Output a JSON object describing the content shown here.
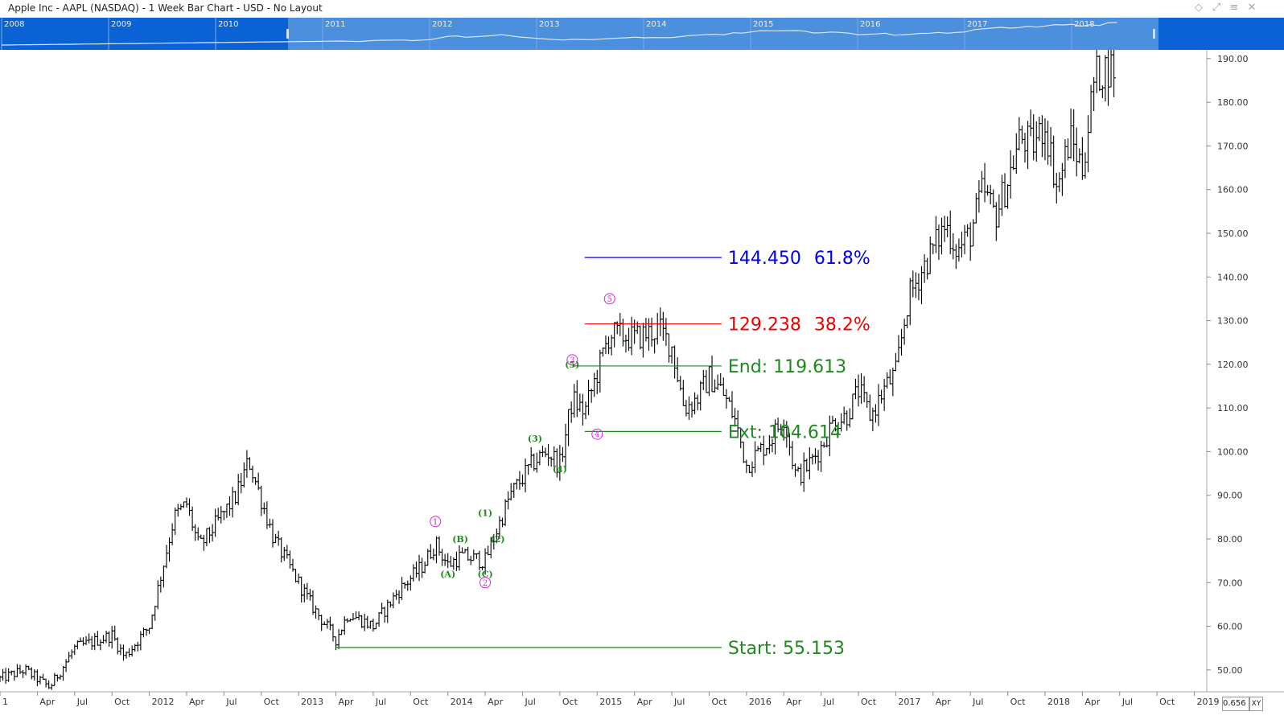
{
  "title": "Apple Inc - AAPL (NASDAQ) - 1 Week Bar Chart - USD - No Layout",
  "toolbar_icons": [
    "diamond-icon",
    "pin-icon",
    "collapse-icon",
    "close-icon"
  ],
  "navigator": {
    "years": [
      "2008",
      "2009",
      "2010",
      "2011",
      "2012",
      "2013",
      "2014",
      "2015",
      "2016",
      "2017",
      "2018"
    ]
  },
  "status": {
    "x_readout": "0.656",
    "xy_label": "XY"
  },
  "colors": {
    "bars": "#000000",
    "wave_green": "#1e8a1e",
    "wave_magenta": "#e020e0",
    "fib_blue": "#0000ee",
    "fib_red": "#ee0000",
    "navigator": "#0a62d4"
  },
  "chart_data": {
    "type": "bar",
    "symbol": "AAPL",
    "interval": "1 Week",
    "y_range": [
      45,
      192
    ],
    "y_ticks": [
      "190.00",
      "180.00",
      "170.00",
      "160.00",
      "150.00",
      "140.00",
      "130.00",
      "120.00",
      "110.00",
      "100.00",
      "90.00",
      "80.00",
      "70.00",
      "60.00",
      "50.00"
    ],
    "x_ticks": [
      "1",
      "Apr",
      "Jul",
      "Oct",
      "2012",
      "Apr",
      "Jul",
      "Oct",
      "2013",
      "Apr",
      "Jul",
      "Oct",
      "2014",
      "Apr",
      "Jul",
      "Oct",
      "2015",
      "Apr",
      "Jul",
      "Oct",
      "2016",
      "Apr",
      "Jul",
      "Oct",
      "2017",
      "Apr",
      "Jul",
      "Oct",
      "2018",
      "Apr",
      "Jul",
      "Oct",
      "2019"
    ],
    "x_start": "2011-01",
    "x_end": "2019-02",
    "price_path": [
      [
        "2011-01",
        48
      ],
      [
        "2011-03",
        50
      ],
      [
        "2011-05",
        46
      ],
      [
        "2011-07",
        55
      ],
      [
        "2011-10",
        58
      ],
      [
        "2011-11",
        53
      ],
      [
        "2012-01",
        60
      ],
      [
        "2012-03",
        85
      ],
      [
        "2012-04",
        88
      ],
      [
        "2012-05",
        78
      ],
      [
        "2012-06",
        82
      ],
      [
        "2012-08",
        90
      ],
      [
        "2012-09",
        98
      ],
      [
        "2012-11",
        80
      ],
      [
        "2013-01",
        70
      ],
      [
        "2013-02",
        65
      ],
      [
        "2013-04",
        57
      ],
      [
        "2013-05",
        63
      ],
      [
        "2013-07",
        60
      ],
      [
        "2013-09",
        68
      ],
      [
        "2013-11",
        74
      ],
      [
        "2013-12",
        79
      ],
      [
        "2014-01",
        74
      ],
      [
        "2014-02",
        76
      ],
      [
        "2014-04",
        75
      ],
      [
        "2014-06",
        90
      ],
      [
        "2014-08",
        98
      ],
      [
        "2014-09",
        100
      ],
      [
        "2014-10",
        97
      ],
      [
        "2014-11",
        112
      ],
      [
        "2014-12",
        109
      ],
      [
        "2015-02",
        127
      ],
      [
        "2015-04",
        126
      ],
      [
        "2015-06",
        128
      ],
      [
        "2015-07",
        124
      ],
      [
        "2015-08",
        110
      ],
      [
        "2015-09",
        112
      ],
      [
        "2015-10",
        117
      ],
      [
        "2015-11",
        114
      ],
      [
        "2015-12",
        108
      ],
      [
        "2016-01",
        97
      ],
      [
        "2016-03",
        103
      ],
      [
        "2016-04",
        108
      ],
      [
        "2016-05",
        94
      ],
      [
        "2016-06",
        97
      ],
      [
        "2016-07",
        101
      ],
      [
        "2016-08",
        107
      ],
      [
        "2016-09",
        108
      ],
      [
        "2016-10",
        114
      ],
      [
        "2016-11",
        108
      ],
      [
        "2016-12",
        114
      ],
      [
        "2017-01",
        118
      ],
      [
        "2017-02",
        135
      ],
      [
        "2017-03",
        141
      ],
      [
        "2017-05",
        152
      ],
      [
        "2017-06",
        146
      ],
      [
        "2017-07",
        150
      ],
      [
        "2017-08",
        160
      ],
      [
        "2017-09",
        154
      ],
      [
        "2017-10",
        162
      ],
      [
        "2017-11",
        172
      ],
      [
        "2017-12",
        170
      ],
      [
        "2018-01",
        175
      ],
      [
        "2018-02",
        160
      ],
      [
        "2018-03",
        172
      ],
      [
        "2018-04",
        165
      ],
      [
        "2018-05",
        186
      ],
      [
        "2018-06",
        188
      ]
    ],
    "elliott_waves": [
      {
        "label": "1",
        "color": "magenta",
        "date": "2013-12",
        "price": 84
      },
      {
        "label": "2",
        "color": "magenta",
        "date": "2014-04",
        "price": 70
      },
      {
        "label": "3",
        "color": "magenta",
        "date": "2014-11",
        "price": 121
      },
      {
        "label": "4",
        "color": "magenta",
        "date": "2015-01",
        "price": 104
      },
      {
        "label": "5",
        "color": "magenta",
        "date": "2015-02",
        "price": 135
      },
      {
        "label": "(A)",
        "color": "green",
        "date": "2014-01",
        "price": 72
      },
      {
        "label": "(B)",
        "color": "green",
        "date": "2014-02",
        "price": 80
      },
      {
        "label": "(C)",
        "color": "green",
        "date": "2014-04",
        "price": 72
      },
      {
        "label": "(1)",
        "color": "green",
        "date": "2014-04",
        "price": 86
      },
      {
        "label": "(2)",
        "color": "green",
        "date": "2014-05",
        "price": 80
      },
      {
        "label": "(3)",
        "color": "green",
        "date": "2014-08",
        "price": 103
      },
      {
        "label": "(4)",
        "color": "green",
        "date": "2014-10",
        "price": 96
      },
      {
        "label": "(5)",
        "color": "green",
        "date": "2014-11",
        "price": 120
      }
    ],
    "levels": [
      {
        "label": "144.450",
        "pct": "61.8%",
        "value": 144.45,
        "color": "blue",
        "from": "2014-12",
        "to": "2015-11"
      },
      {
        "label": "129.238",
        "pct": "38.2%",
        "value": 129.238,
        "color": "red",
        "from": "2014-12",
        "to": "2015-11"
      },
      {
        "label": "End: 119.613",
        "value": 119.613,
        "color": "green",
        "from": "2014-11",
        "to": "2015-11"
      },
      {
        "label": "Ext: 104.614",
        "value": 104.614,
        "color": "green",
        "from": "2014-12",
        "to": "2015-11"
      },
      {
        "label": "Start: 55.153",
        "value": 55.153,
        "color": "green",
        "from": "2013-04",
        "to": "2015-11"
      }
    ]
  }
}
